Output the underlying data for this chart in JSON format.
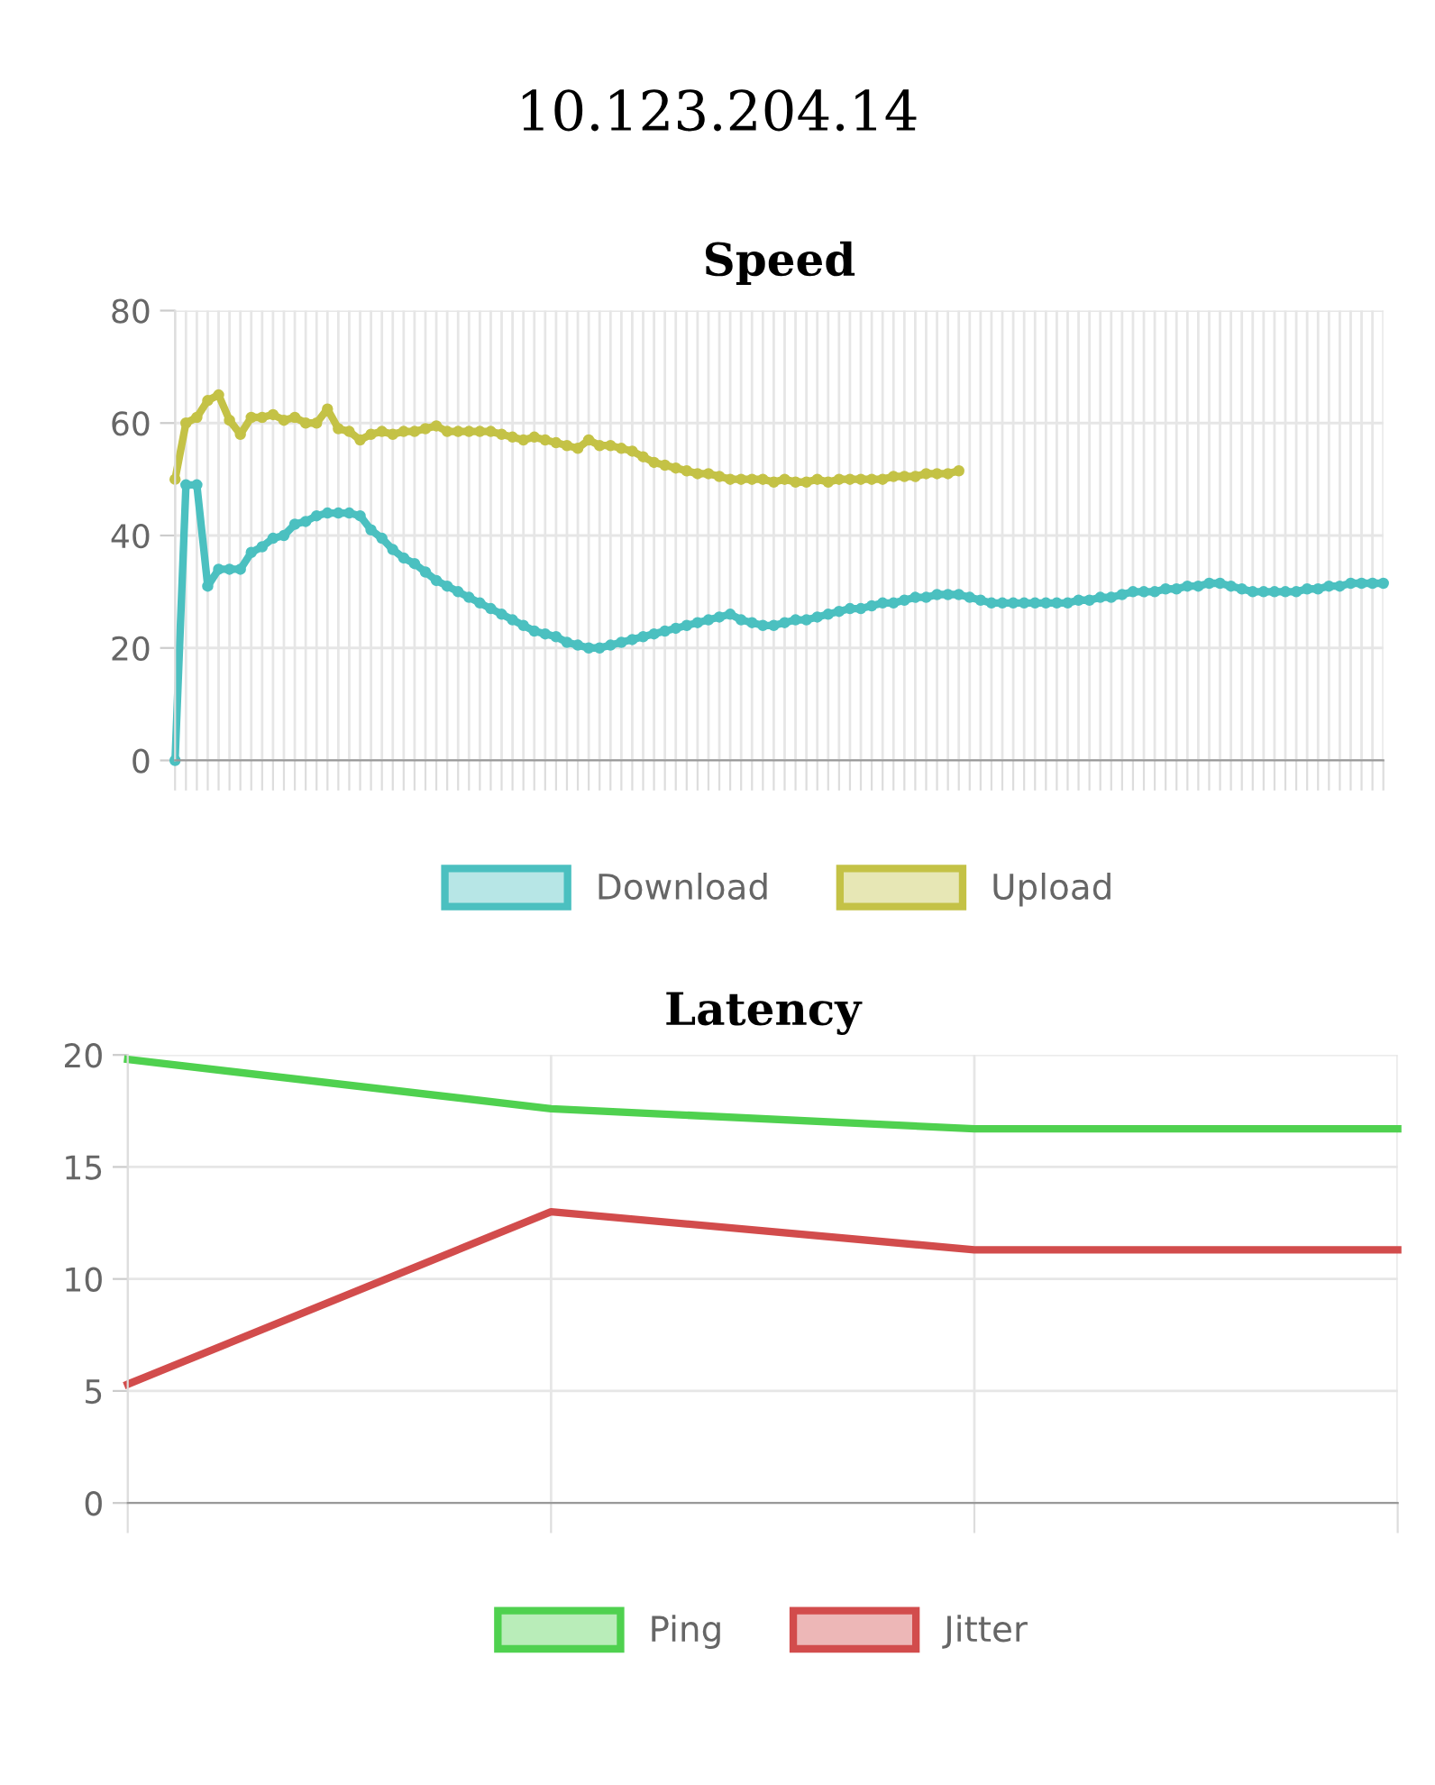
{
  "chart_data": [
    {
      "type": "line",
      "title": "10.123.204.14",
      "subtitle": "Speed",
      "categories": [
        null,
        null,
        null,
        null,
        null,
        null,
        null,
        null,
        null,
        null,
        null,
        null,
        null,
        null,
        null,
        null,
        null,
        null,
        null,
        null,
        null,
        null,
        null,
        null,
        null,
        null,
        null,
        null,
        null,
        null,
        null,
        null,
        null,
        null,
        null,
        null,
        null,
        null,
        null,
        null,
        null,
        null,
        null,
        null,
        null,
        null,
        null,
        null,
        null,
        null,
        null,
        null,
        null,
        null,
        null,
        null,
        null,
        null,
        null,
        null,
        null,
        null,
        null,
        null,
        null,
        null,
        null,
        null,
        null,
        null,
        null,
        null,
        null,
        null,
        null,
        null,
        null,
        null,
        null,
        null,
        null,
        null,
        null,
        null,
        null,
        null,
        null,
        null,
        null,
        null,
        null,
        null,
        null,
        null,
        null,
        null,
        null,
        null,
        null,
        null,
        null,
        null,
        null,
        null,
        null,
        null,
        null,
        null,
        null,
        null,
        null,
        null
      ],
      "series": [
        {
          "name": "Download",
          "color": "#4bc0c0",
          "values": [
            0,
            49,
            49,
            31,
            34,
            34,
            34,
            37,
            38,
            39.5,
            40,
            42,
            42.5,
            43.5,
            44,
            44,
            44,
            43.5,
            41,
            39.5,
            37.5,
            36,
            35,
            33.5,
            32,
            31,
            30,
            29,
            28,
            27,
            26,
            25,
            24,
            23,
            22.5,
            22,
            21,
            20.5,
            20,
            20,
            20.5,
            21,
            21.5,
            22,
            22.5,
            23,
            23.5,
            24,
            24.5,
            25,
            25.5,
            26,
            25,
            24.5,
            24,
            24,
            24.5,
            25,
            25,
            25.5,
            26,
            26.5,
            27,
            27,
            27.5,
            28,
            28,
            28.5,
            29,
            29,
            29.5,
            29.5,
            29.5,
            29,
            28.5,
            28,
            28,
            28,
            28,
            28,
            28,
            28,
            28,
            28.5,
            28.5,
            29,
            29,
            29.5,
            30,
            30,
            30,
            30.5,
            30.5,
            31,
            31,
            31.5,
            31.5,
            31,
            30.5,
            30,
            30,
            30,
            30,
            30,
            30.5,
            30.5,
            31,
            31,
            31.5,
            31.5,
            31.5,
            31.5
          ]
        },
        {
          "name": "Upload",
          "color": "#c4c246",
          "values": [
            50,
            60,
            61,
            64,
            65,
            60.5,
            58,
            61,
            61,
            61.5,
            60.5,
            61,
            60,
            60,
            62.5,
            59,
            58.5,
            57,
            58,
            58.5,
            58,
            58.5,
            58.5,
            59,
            59.5,
            58.5,
            58.5,
            58.5,
            58.5,
            58.5,
            58,
            57.5,
            57,
            57.5,
            57,
            56.5,
            56,
            55.5,
            57,
            56,
            56,
            55.5,
            55,
            54,
            53,
            52.5,
            52,
            51.5,
            51,
            51,
            50.5,
            50,
            50,
            50,
            50,
            49.5,
            50,
            49.5,
            49.5,
            50,
            49.5,
            50,
            50,
            50,
            50,
            50,
            50.5,
            50.5,
            50.5,
            51,
            51,
            51,
            51.5,
            null,
            null,
            null,
            null,
            null,
            null,
            null,
            null,
            null,
            null,
            null,
            null,
            null,
            null,
            null,
            null,
            null,
            null,
            null,
            null,
            null,
            null,
            null,
            null,
            null,
            null,
            null,
            null,
            null,
            null,
            null,
            null,
            null,
            null,
            null,
            null,
            null,
            null,
            null
          ]
        }
      ],
      "ylim": [
        0,
        80
      ],
      "yticks": [
        0,
        20,
        40,
        60,
        80
      ],
      "grid": true,
      "legend": "bottom",
      "marker": "circle",
      "line_style": "solid"
    },
    {
      "type": "line",
      "title": "Latency",
      "categories": [
        null,
        null,
        null,
        null
      ],
      "series": [
        {
          "name": "Ping",
          "color": "#4fd14f",
          "values": [
            19.8,
            17.6,
            16.7,
            16.7
          ]
        },
        {
          "name": "Jitter",
          "color": "#d24c4c",
          "values": [
            5.3,
            13,
            11.3,
            11.3
          ]
        }
      ],
      "ylim": [
        0,
        20
      ],
      "yticks": [
        0,
        5,
        10,
        15,
        20
      ],
      "grid": true,
      "legend": "bottom",
      "line_style": "solid"
    }
  ]
}
